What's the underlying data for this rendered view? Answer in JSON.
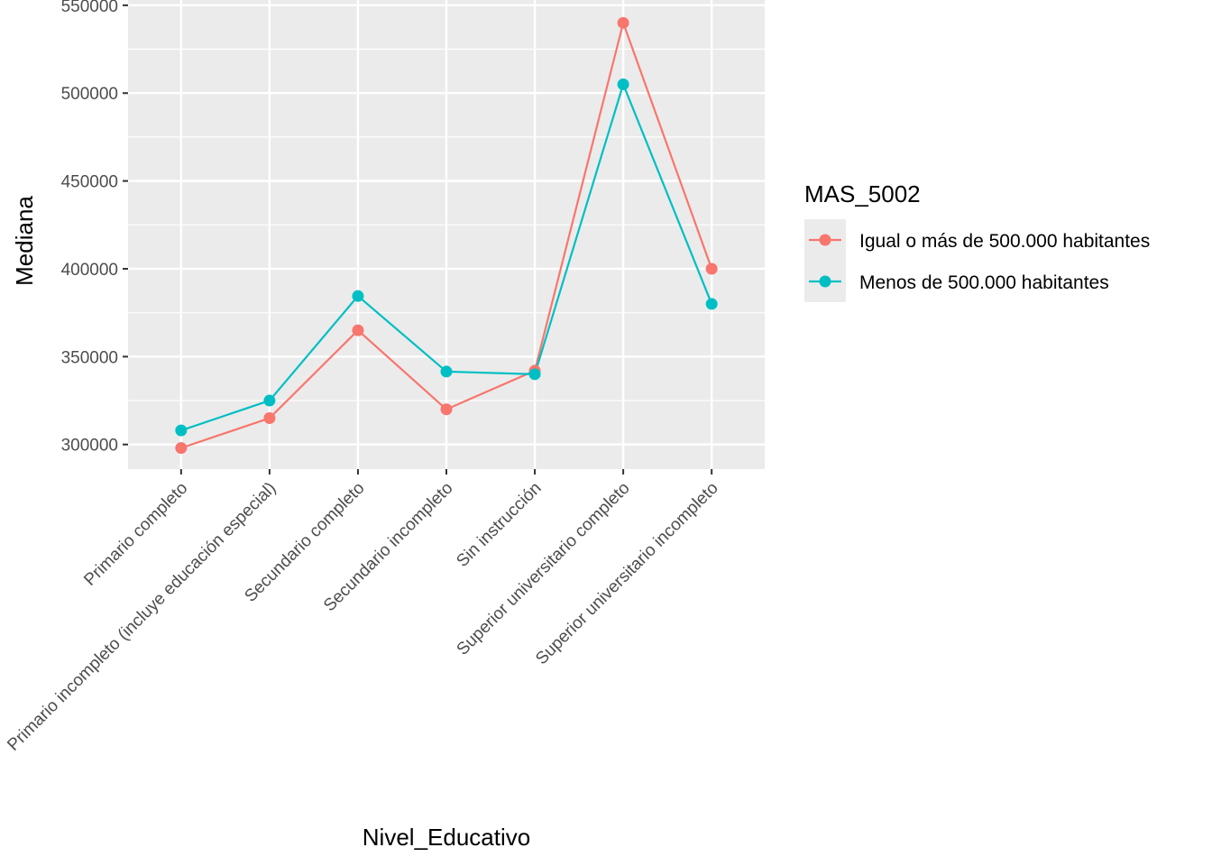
{
  "chart_data": {
    "type": "line",
    "xlabel": "Nivel_Educativo",
    "ylabel": "Mediana",
    "categories": [
      "Primario completo",
      "Primario incompleto (incluye educación especial)",
      "Secundario completo",
      "Secundario incompleto",
      "Sin instrucción",
      "Superior universitario completo",
      "Superior universitario incompleto"
    ],
    "yticks": [
      "300000",
      "350000",
      "400000",
      "450000",
      "500000",
      "550000"
    ],
    "ylim": [
      286000,
      553000
    ],
    "grid": true,
    "legend": {
      "title": "MAS_5002",
      "position": "right"
    },
    "series": [
      {
        "name": "Igual o más de 500.000 habitantes",
        "color": "#F8766D",
        "values": [
          298000,
          315000,
          365000,
          320000,
          342000,
          540000,
          400000
        ]
      },
      {
        "name": "Menos de 500.000 habitantes",
        "color": "#00BFC4",
        "values": [
          308000,
          325000,
          384500,
          341500,
          340000,
          505000,
          380000
        ]
      }
    ]
  }
}
